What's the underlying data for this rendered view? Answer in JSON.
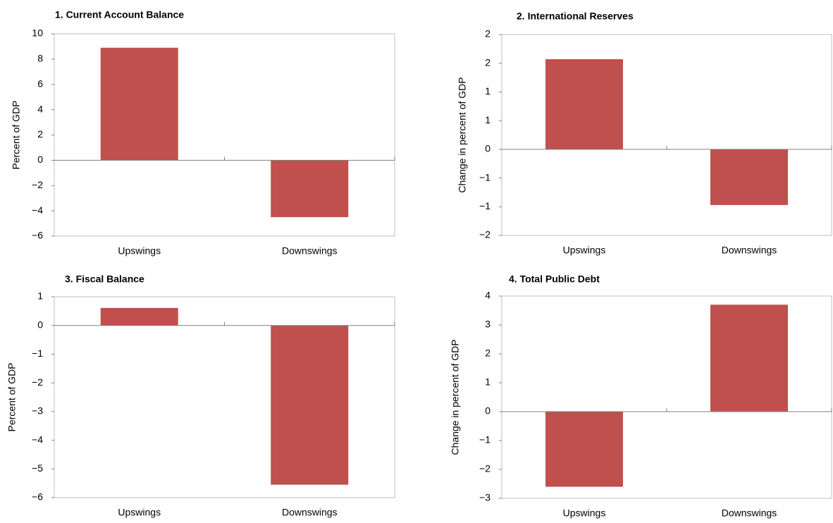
{
  "chart_data": [
    {
      "type": "bar",
      "title": "1. Current Account Balance",
      "ylabel": "Percent of GDP",
      "categories": [
        "Upswings",
        "Downswings"
      ],
      "values": [
        8.9,
        -4.5
      ],
      "color": "#c0504d",
      "ylim": [
        -6,
        10
      ],
      "yticks": [
        {
          "value": -6,
          "label": "−6"
        },
        {
          "value": -4,
          "label": "−4"
        },
        {
          "value": -2,
          "label": "−2"
        },
        0,
        2,
        4,
        6,
        8,
        10
      ]
    },
    {
      "type": "bar",
      "title": "2. International Reserves",
      "ylabel": "Change in percent of GDP",
      "categories": [
        "Upswings",
        "Downswings"
      ],
      "values": [
        1.57,
        -0.97
      ],
      "color": "#c0504d",
      "ylim": [
        -1.5,
        2
      ],
      "yticks": [
        {
          "value": -1.5,
          "label": "−2"
        },
        {
          "value": -1,
          "label": "−1"
        },
        {
          "value": -0.5,
          "label": "−1"
        },
        0,
        {
          "value": 0.5,
          "label": "1"
        },
        1,
        {
          "value": 1.5,
          "label": "2"
        },
        2
      ]
    },
    {
      "type": "bar",
      "title": "3. Fiscal Balance",
      "ylabel": "Percent of GDP",
      "categories": [
        "Upswings",
        "Downswings"
      ],
      "values": [
        0.61,
        -5.55
      ],
      "color": "#c0504d",
      "ylim": [
        -6,
        1
      ],
      "yticks": [
        {
          "value": -6,
          "label": "−6"
        },
        {
          "value": -5,
          "label": "−5"
        },
        {
          "value": -4,
          "label": "−4"
        },
        {
          "value": -3,
          "label": "−3"
        },
        {
          "value": -2,
          "label": "−2"
        },
        {
          "value": -1,
          "label": "−1"
        },
        0,
        1
      ]
    },
    {
      "type": "bar",
      "title": "4. Total Public Debt",
      "ylabel": "Change in percent of GDP",
      "categories": [
        "Upswings",
        "Downswings"
      ],
      "values": [
        -2.6,
        3.7
      ],
      "color": "#c0504d",
      "ylim": [
        -3,
        4
      ],
      "yticks": [
        {
          "value": -3,
          "label": "−3"
        },
        {
          "value": -2,
          "label": "−2"
        },
        {
          "value": -1,
          "label": "−1"
        },
        0,
        1,
        2,
        3,
        4
      ]
    }
  ]
}
